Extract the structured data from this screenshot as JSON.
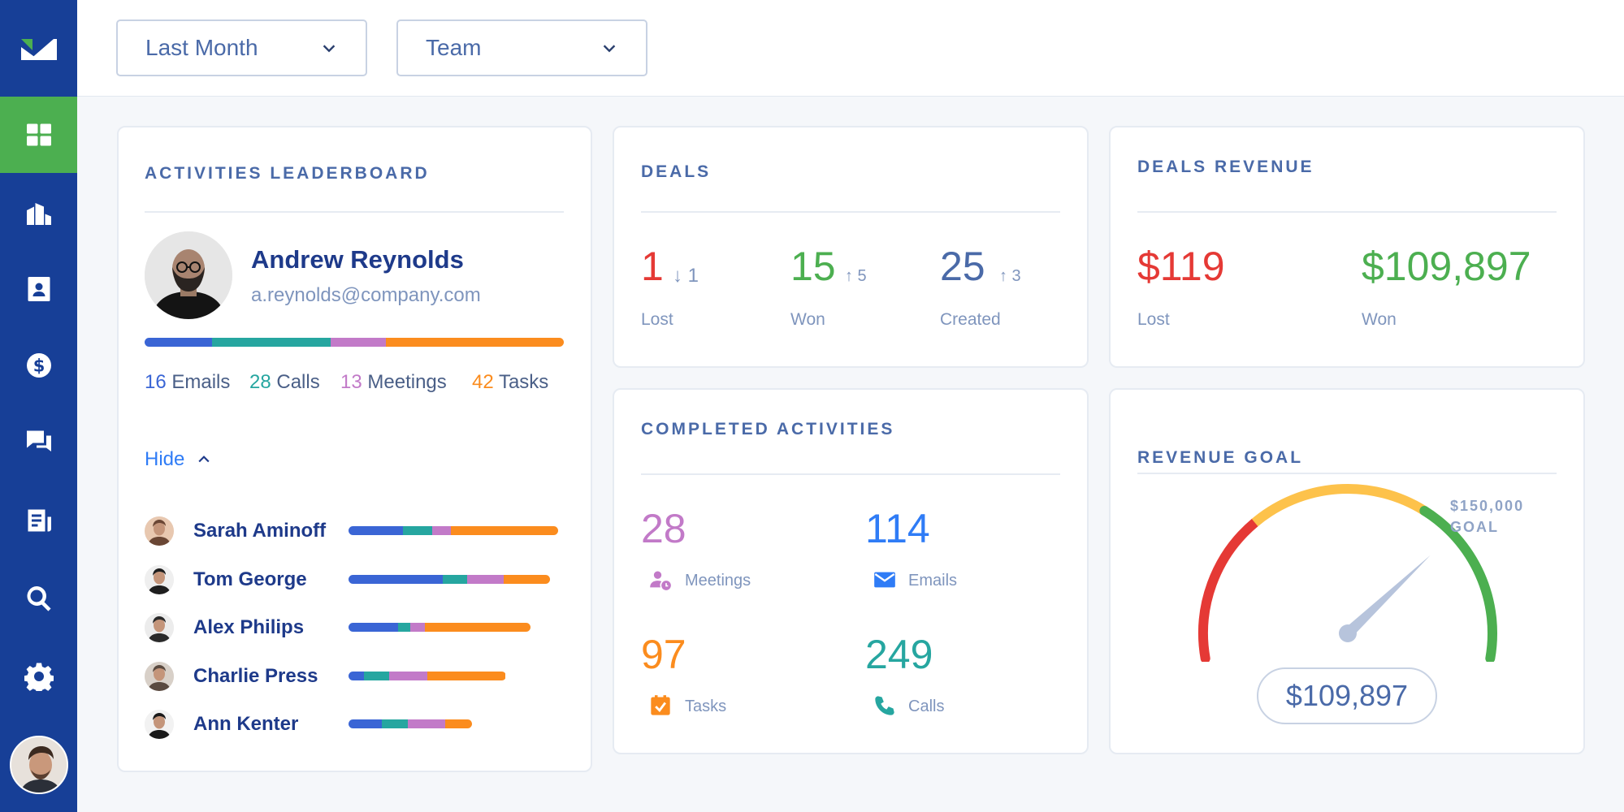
{
  "filters": {
    "period": "Last Month",
    "group": "Team"
  },
  "colors": {
    "sidebar": "#173f97",
    "active": "#4caf50",
    "emails": "#3a65d5",
    "calls": "#26a6a0",
    "meetings": "#c27ac8",
    "tasks": "#fb8c1e",
    "lost": "#e53935",
    "won": "#4caf50",
    "created": "#4a6aa8"
  },
  "sidebar": {
    "items": [
      "dashboard-icon",
      "buildings-icon",
      "contact-icon",
      "dollar-icon",
      "chat-icon",
      "document-icon",
      "search-icon",
      "settings-icon"
    ]
  },
  "leaderboard": {
    "title": "ACTIVITIES LEADERBOARD",
    "leader": {
      "name": "Andrew Reynolds",
      "email": "a.reynolds@company.com",
      "emails_count": "16",
      "emails_label": "Emails",
      "calls_count": "28",
      "calls_label": "Calls",
      "meetings_count": "13",
      "meetings_label": "Meetings",
      "tasks_count": "42",
      "tasks_label": "Tasks",
      "split": [
        16,
        28,
        13,
        42
      ]
    },
    "toggle_label": "Hide",
    "people": [
      {
        "name": "Sarah Aminoff",
        "split": [
          0.26,
          0.14,
          0.09,
          0.51
        ],
        "total": 1.0
      },
      {
        "name": "Tom George",
        "split": [
          0.47,
          0.12,
          0.18,
          0.23
        ],
        "total": 0.96
      },
      {
        "name": "Alex Philips",
        "split": [
          0.27,
          0.07,
          0.08,
          0.58
        ],
        "total": 0.87
      },
      {
        "name": "Charlie Press",
        "split": [
          0.1,
          0.16,
          0.24,
          0.5
        ],
        "total": 0.75
      },
      {
        "name": "Ann Kenter",
        "split": [
          0.27,
          0.21,
          0.3,
          0.22
        ],
        "total": 0.59
      }
    ]
  },
  "deals": {
    "title": "DEALS",
    "lost": {
      "value": "1",
      "delta": "↓ 1",
      "label": "Lost"
    },
    "won": {
      "value": "15",
      "delta": "↑ 5",
      "label": "Won"
    },
    "created": {
      "value": "25",
      "delta": "↑ 3",
      "label": "Created"
    }
  },
  "revenue": {
    "title": "DEALS REVENUE",
    "lost": {
      "value": "$119",
      "label": "Lost"
    },
    "won": {
      "value": "$109,897",
      "label": "Won"
    }
  },
  "completed": {
    "title": "COMPLETED ACTIVITIES",
    "meetings": {
      "value": "28",
      "label": "Meetings",
      "icon": "meeting-icon"
    },
    "emails": {
      "value": "114",
      "label": "Emails",
      "icon": "email-icon"
    },
    "tasks": {
      "value": "97",
      "label": "Tasks",
      "icon": "task-icon"
    },
    "calls": {
      "value": "249",
      "label": "Calls",
      "icon": "phone-icon"
    }
  },
  "goal": {
    "title": "REVENUE GOAL",
    "goal_value": "$150,000",
    "goal_label": "GOAL",
    "current": "$109,897",
    "progress": 0.733
  }
}
